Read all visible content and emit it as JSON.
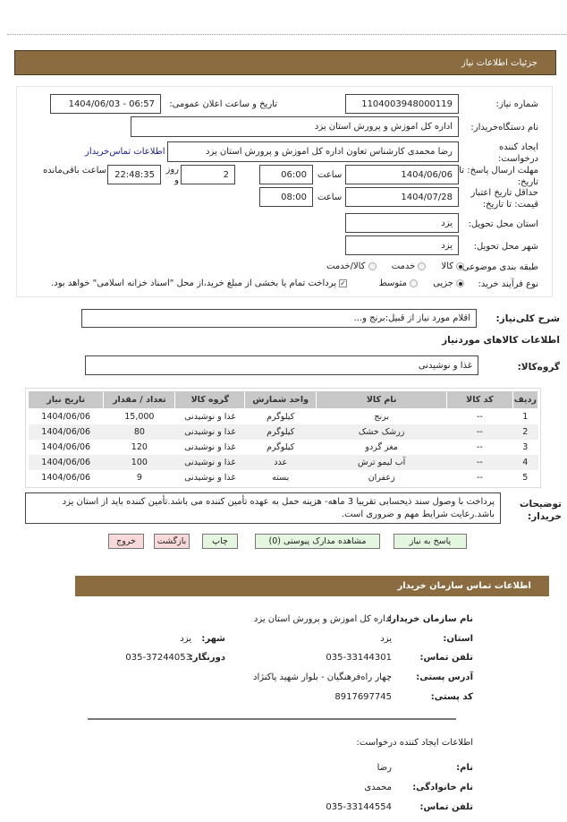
{
  "header": {
    "title": "جزئیات اطلاعات نیاز"
  },
  "form": {
    "need_number_label": "شماره نیاز:",
    "need_number": "1104003948000119",
    "announce_label": "تاریخ و ساعت اعلان عمومی:",
    "announce_value": "1404/06/03 - 06:57",
    "buyer_label": "نام دستگاه‌خریدار:",
    "buyer_value": "اداره کل اموزش و پرورش استان یزد",
    "creator_label": "ایجاد کننده درخواست:",
    "creator_value": "رضا محمدی کارشناس تعاون اداره کل اموزش و پرورش استان یزد",
    "contact_link": "اطلاعات تماس‌خریدار",
    "deadline_label": "مهلت ارسال پاسخ: تا تاریخ:",
    "deadline_date": "1404/06/06",
    "time_label": "ساعت",
    "deadline_time": "06:00",
    "days": "2",
    "days_label": "روز و",
    "remaining": "22:48:35",
    "remaining_label": "ساعت باقی‌مانده",
    "validity_label": "حداقل تاریخ اعتبار قیمت: تا تاریخ:",
    "validity_date": "1404/07/28",
    "validity_time": "08:00",
    "province_label": "استان محل تحویل:",
    "province": "یزد",
    "city_label": "شهر محل تحویل:",
    "city": "یزد",
    "category_label": "طبقه بندی موضوعی:",
    "category_options": [
      "کالا",
      "خدمت",
      "کالا/خدمت"
    ],
    "category_selected": "کالا",
    "process_label": "نوع فرآیند خرید:",
    "process_options": [
      "جزیی",
      "متوسط"
    ],
    "process_selected": "جزیی",
    "payment_note": "پرداخت تمام یا بخشی از مبلغ خرید،از محل \"اسناد خزانه اسلامی\" خواهد بود.",
    "payment_checked": true
  },
  "summary": {
    "label": "شرح کلی‌نیاز:",
    "value": "اقلام مورد نیاز از قبیل:برنج و...",
    "goods_title": "اطلاعات کالاهای موردنیاز",
    "group_label": "گروه‌کالا:",
    "group_value": "غذا و نوشیدنی"
  },
  "table": {
    "headers": [
      "ردیف",
      "کد کالا",
      "نام کالا",
      "واحد شمارش",
      "گروه کالا",
      "تعداد / مقدار",
      "تاریخ نیاز"
    ],
    "rows": [
      [
        "1",
        "--",
        "برنج",
        "کیلوگرم",
        "غذا و نوشیدنی",
        "15,000",
        "1404/06/06"
      ],
      [
        "2",
        "--",
        "زرشک خشک",
        "کیلوگرم",
        "غذا و نوشیدنی",
        "80",
        "1404/06/06"
      ],
      [
        "3",
        "--",
        "مغز گردو",
        "کیلوگرم",
        "غذا و نوشیدنی",
        "120",
        "1404/06/06"
      ],
      [
        "4",
        "--",
        "آب لیمو ترش",
        "عدد",
        "غذا و نوشیدنی",
        "100",
        "1404/06/06"
      ],
      [
        "5",
        "--",
        "زعفران",
        "بسته",
        "غذا و نوشیدنی",
        "9",
        "1404/06/06"
      ]
    ]
  },
  "notes": {
    "label": "توضیحات خریدار:",
    "value": "پرداخت با وصول سند ذیحسابی تقریبا 3 ماهه- هزینه حمل به عهده تأمین کننده می باشد.تأمین کننده باید از استان یزد باشد.رعایت شرایط مهم و ضروری است."
  },
  "buttons": {
    "reply": "پاسخ به نیاز",
    "attachments": "مشاهده مدارک پیوستی (0)",
    "print": "چاپ",
    "back": "بازگشت",
    "exit": "خروج"
  },
  "contact": {
    "title": "اطلاعات تماس سازمان خریدار",
    "org_label": "نام سازمان خریدار:",
    "org": "اداره کل اموزش و پرورش استان یزد",
    "province_label": "استان:",
    "province": "یزد",
    "city_label": "شهر:",
    "city": "یزد",
    "phone_label": "تلفن تماس:",
    "phone": "035-33144301",
    "fax_label": "دورنگار:",
    "fax": "035-37244053",
    "address_label": "آدرس پستی:",
    "address": "چهار راه‌فرهنگیان - بلوار شهید پاکنژاد",
    "postal_label": "کد پستی:",
    "postal": "8917697745",
    "creator_title": "اطلاعات ایجاد کننده درخواست:",
    "name_label": "نام:",
    "name": "رضا",
    "family_label": "نام خانوادگی:",
    "family": "محمدی",
    "creator_phone_label": "تلفن تماس:",
    "creator_phone": "035-33144554"
  },
  "colors": {
    "header": "#8b6c40",
    "green_button": "#e4f6e0",
    "red_button": "#f8d8d8",
    "link": "#1a1aa6"
  }
}
